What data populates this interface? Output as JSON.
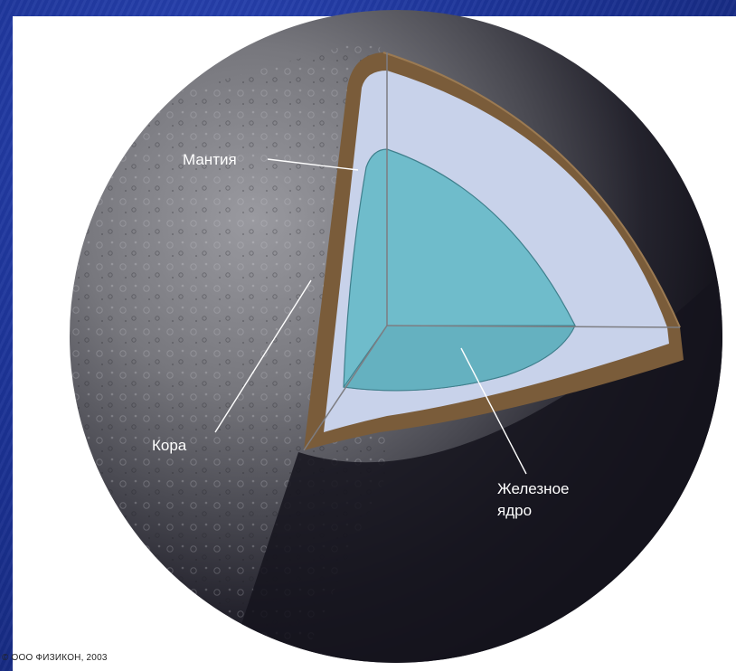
{
  "diagram": {
    "labels": {
      "mantle": "Мантия",
      "crust": "Кора",
      "core_line1": "Железное",
      "core_line2": "ядро"
    },
    "colors": {
      "background": "#1a2f8c",
      "panel": "#ffffff",
      "planet_dark": "#16151f",
      "planet_gray": "#6e6e74",
      "crust": "#7a5c3a",
      "mantle": "#c8d2ea",
      "core": "#6fbccb",
      "core_edge": "#3f7f8c",
      "axis_lines": "#7d7d82",
      "label_text": "#ffffff"
    }
  },
  "copyright": "© ООО ФИЗИКОН, 2003"
}
